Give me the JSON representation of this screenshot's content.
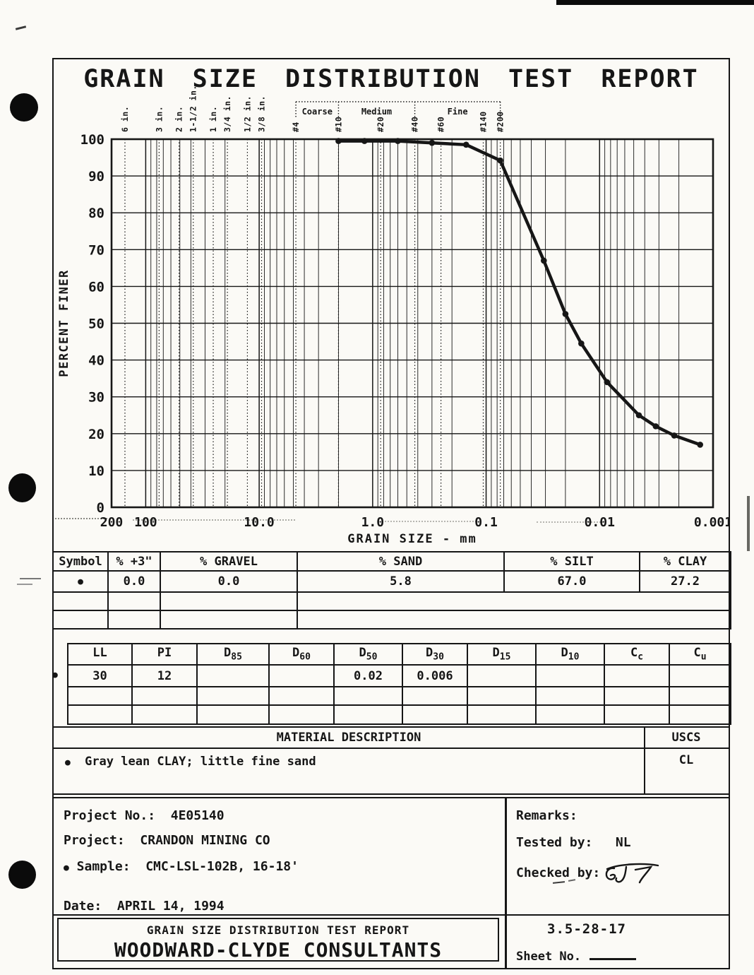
{
  "colors": {
    "ink": "#161616",
    "paper": "#fbfaf6"
  },
  "page": {
    "title": "GRAIN SIZE DISTRIBUTION TEST REPORT"
  },
  "chart_data": {
    "type": "line",
    "x_scale": "log",
    "x_descending": true,
    "x_range_mm": [
      200,
      0.001
    ],
    "y_range_pct": [
      0,
      100
    ],
    "y_tick_step": 10,
    "xlabel": "GRAIN SIZE - mm",
    "ylabel": "PERCENT FINER",
    "x_tick_labels": [
      "200",
      "100",
      "10.0",
      "1.0",
      "0.1",
      "0.01",
      "0.001"
    ],
    "x_tick_values": [
      200,
      100,
      10,
      1.0,
      0.1,
      0.01,
      0.001
    ],
    "grid": "semilog",
    "sieves": [
      {
        "label": "6 in.",
        "mm": 152.4
      },
      {
        "label": "3 in.",
        "mm": 76.2
      },
      {
        "label": "2 in.",
        "mm": 50.8
      },
      {
        "label": "1-1/2 in.",
        "mm": 38.1
      },
      {
        "label": "1 in.",
        "mm": 25.4
      },
      {
        "label": "3/4 in.",
        "mm": 19.05
      },
      {
        "label": "1/2 in.",
        "mm": 12.7
      },
      {
        "label": "3/8 in.",
        "mm": 9.525
      },
      {
        "label": "#4",
        "mm": 4.75
      },
      {
        "label": "#10",
        "mm": 2.0
      },
      {
        "label": "#20",
        "mm": 0.85
      },
      {
        "label": "#40",
        "mm": 0.425
      },
      {
        "label": "#60",
        "mm": 0.25
      },
      {
        "label": "#140",
        "mm": 0.106
      },
      {
        "label": "#200",
        "mm": 0.075
      }
    ],
    "sand_divisions": {
      "labels": [
        "Coarse",
        "Medium",
        "Fine"
      ],
      "boundaries_mm": [
        4.75,
        2.0,
        0.425,
        0.075
      ]
    },
    "series": [
      {
        "name": "CMC-LSL-102B, 16-18'",
        "symbol": "filled-circle",
        "points_mm_pct": [
          [
            2.0,
            99.5
          ],
          [
            1.18,
            99.5
          ],
          [
            0.6,
            99.5
          ],
          [
            0.3,
            99.0
          ],
          [
            0.15,
            98.5
          ],
          [
            0.075,
            94.2
          ],
          [
            0.031,
            67.0
          ],
          [
            0.02,
            52.5
          ],
          [
            0.0145,
            44.5
          ],
          [
            0.0086,
            34.0
          ],
          [
            0.0045,
            25.0
          ],
          [
            0.0032,
            22.0
          ],
          [
            0.0022,
            19.5
          ],
          [
            0.0013,
            17.0
          ]
        ]
      }
    ]
  },
  "fractions_table": {
    "headers": [
      "Symbol",
      "% +3\"",
      "% GRAVEL",
      "% SAND",
      "% SILT",
      "% CLAY"
    ],
    "row_symbol": "●",
    "row": [
      "0.0",
      "0.0",
      "5.8",
      "67.0",
      "27.2"
    ]
  },
  "indices_table": {
    "row_symbol": "●",
    "headers": [
      {
        "base": "LL",
        "sub": ""
      },
      {
        "base": "PI",
        "sub": ""
      },
      {
        "base": "D",
        "sub": "85"
      },
      {
        "base": "D",
        "sub": "60"
      },
      {
        "base": "D",
        "sub": "50"
      },
      {
        "base": "D",
        "sub": "30"
      },
      {
        "base": "D",
        "sub": "15"
      },
      {
        "base": "D",
        "sub": "10"
      },
      {
        "base": "C",
        "sub": "c"
      },
      {
        "base": "C",
        "sub": "u"
      }
    ],
    "values": [
      "30",
      "12",
      "",
      "",
      "0.02",
      "0.006",
      "",
      "",
      "",
      ""
    ]
  },
  "material": {
    "header": "MATERIAL DESCRIPTION",
    "uscs_header": "USCS",
    "symbol": "●",
    "description": "Gray lean CLAY; little fine sand",
    "uscs_value": "CL"
  },
  "project": {
    "no_label": "Project No.:",
    "no_value": "4E05140",
    "name_label": "Project:",
    "name_value": "CRANDON MINING CO",
    "sample_symbol": "●",
    "sample_label": "Sample:",
    "sample_value": "CMC-LSL-102B, 16-18'",
    "date_label": "Date:",
    "date_value": "APRIL 14, 1994"
  },
  "remarks": {
    "title": "Remarks:",
    "tested_by_label": "Tested by:",
    "tested_by": "NL",
    "checked_by_label": "Checked by:",
    "checked_by_signature": "GJS"
  },
  "footer": {
    "report_title": "GRAIN SIZE DISTRIBUTION TEST REPORT",
    "company": "WOODWARD-CLYDE CONSULTANTS",
    "doc_number": "3.5-28-17",
    "sheet_label": "Sheet No."
  }
}
